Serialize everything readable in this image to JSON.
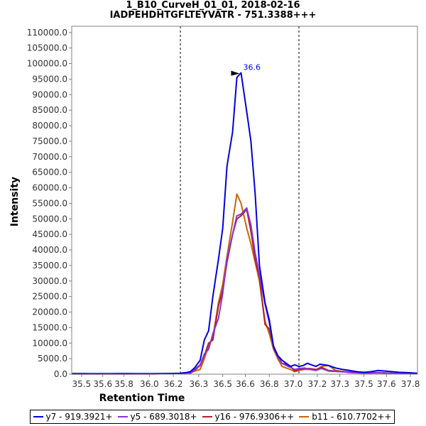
{
  "chart_data": {
    "type": "line",
    "title": "1_B10_CurveH_01_01, 2018-02-16",
    "subtitle": "IADPEHDHTGFLTEYVATR - 751.3388+++",
    "xlabel": "Retention Time",
    "ylabel": "Intensity",
    "xlim": [
      35.43,
      37.88
    ],
    "ylim": [
      0,
      112000
    ],
    "xticks": [
      "35.5",
      "35.6",
      "35.8",
      "36.0",
      "36.2",
      "36.3",
      "36.5",
      "36.6",
      "36.8",
      "37.0",
      "37.2",
      "37.3",
      "37.5",
      "37.6",
      "37.8"
    ],
    "xtick_values": [
      35.5,
      35.65,
      35.8,
      35.98,
      36.15,
      36.33,
      36.5,
      36.66,
      36.83,
      37.0,
      37.17,
      37.33,
      37.5,
      37.66,
      37.83
    ],
    "yticks": [
      "0.0",
      "5000.0",
      "10000.0",
      "15000.0",
      "20000.0",
      "25000.0",
      "30000.0",
      "35000.0",
      "40000.0",
      "45000.0",
      "50000.0",
      "55000.0",
      "60000.0",
      "65000.0",
      "70000.0",
      "75000.0",
      "80000.0",
      "85000.0",
      "90000.0",
      "95000.0",
      "100000.0",
      "105000.0",
      "110000.0"
    ],
    "ytick_values": [
      0,
      5000,
      10000,
      15000,
      20000,
      25000,
      30000,
      35000,
      40000,
      45000,
      50000,
      55000,
      60000,
      65000,
      70000,
      75000,
      80000,
      85000,
      90000,
      95000,
      100000,
      105000,
      110000
    ],
    "vlines": [
      36.2,
      37.04
    ],
    "peak_annotation": {
      "x": 36.66,
      "y": 97000,
      "label": "36.6"
    },
    "series": [
      {
        "name": "y7 - 919.3921+",
        "color": "#0000dd",
        "x": [
          35.43,
          35.5,
          35.6,
          35.7,
          35.8,
          35.9,
          36.0,
          36.1,
          36.2,
          36.24,
          36.27,
          36.3,
          36.34,
          36.37,
          36.4,
          36.43,
          36.47,
          36.5,
          36.53,
          36.57,
          36.6,
          36.63,
          36.67,
          36.7,
          36.73,
          36.76,
          36.8,
          36.83,
          36.86,
          36.89,
          36.92,
          36.95,
          36.98,
          37.01,
          37.04,
          37.07,
          37.1,
          37.13,
          37.16,
          37.19,
          37.22,
          37.25,
          37.3,
          37.35,
          37.4,
          37.45,
          37.5,
          37.55,
          37.6,
          37.65,
          37.7,
          37.75,
          37.8,
          37.88
        ],
        "y": [
          200,
          200,
          150,
          150,
          200,
          150,
          150,
          200,
          300,
          500,
          800,
          2000,
          4500,
          11000,
          14000,
          25000,
          37000,
          47000,
          67000,
          78000,
          95500,
          97000,
          84500,
          75000,
          58000,
          35000,
          23000,
          17500,
          9000,
          6000,
          4500,
          3500,
          2500,
          3000,
          2500,
          2800,
          3500,
          3000,
          2500,
          3200,
          3000,
          2800,
          2000,
          1500,
          1200,
          800,
          600,
          800,
          1200,
          1000,
          800,
          600,
          500,
          300
        ]
      },
      {
        "name": "y5 - 689.3018+",
        "color": "#8833dd",
        "x": [
          35.43,
          35.6,
          35.8,
          36.0,
          36.2,
          36.27,
          36.3,
          36.34,
          36.37,
          36.4,
          36.43,
          36.47,
          36.5,
          36.53,
          36.57,
          36.6,
          36.63,
          36.67,
          36.7,
          36.73,
          36.76,
          36.8,
          36.83,
          36.86,
          36.89,
          36.92,
          36.95,
          36.98,
          37.01,
          37.04,
          37.08,
          37.12,
          37.16,
          37.2,
          37.25,
          37.3,
          37.4,
          37.5,
          37.6,
          37.7,
          37.88
        ],
        "y": [
          100,
          100,
          100,
          100,
          150,
          400,
          1500,
          3000,
          6500,
          8000,
          13000,
          18000,
          26000,
          37000,
          45000,
          51000,
          51500,
          53500,
          48000,
          39000,
          32000,
          22500,
          16500,
          8500,
          5500,
          3500,
          2800,
          2200,
          1500,
          1800,
          2000,
          1500,
          1200,
          1800,
          1000,
          900,
          600,
          400,
          500,
          300,
          200
        ]
      },
      {
        "name": "y16 - 976.9306++",
        "color": "#b22222",
        "x": [
          35.43,
          35.6,
          35.8,
          36.0,
          36.2,
          36.27,
          36.3,
          36.34,
          36.37,
          36.4,
          36.43,
          36.47,
          36.5,
          36.53,
          36.57,
          36.6,
          36.63,
          36.67,
          36.7,
          36.73,
          36.76,
          36.8,
          36.83,
          36.86,
          36.89,
          36.92,
          36.95,
          36.98,
          37.01,
          37.04,
          37.08,
          37.12,
          37.16,
          37.2,
          37.25,
          37.3,
          37.4,
          37.5,
          37.6,
          37.7,
          37.88
        ],
        "y": [
          100,
          100,
          100,
          100,
          150,
          400,
          1200,
          2800,
          6000,
          10000,
          11000,
          22000,
          27000,
          36000,
          45000,
          50000,
          51000,
          53000,
          46000,
          37000,
          31000,
          16000,
          14500,
          9000,
          6000,
          3500,
          3200,
          2500,
          1000,
          1500,
          1800,
          1800,
          1500,
          2200,
          1200,
          1000,
          700,
          400,
          500,
          300,
          200
        ]
      },
      {
        "name": "b11 - 610.7702++",
        "color": "#cc6600",
        "x": [
          35.43,
          35.6,
          35.8,
          36.0,
          36.2,
          36.27,
          36.3,
          36.34,
          36.37,
          36.4,
          36.43,
          36.47,
          36.5,
          36.53,
          36.57,
          36.6,
          36.63,
          36.67,
          36.7,
          36.73,
          36.76,
          36.8,
          36.83,
          36.86,
          36.89,
          36.92,
          36.95,
          36.98,
          37.01,
          37.04,
          37.08,
          37.12,
          37.16,
          37.2,
          37.25,
          37.3,
          37.4,
          37.5,
          37.6,
          37.7,
          37.88
        ],
        "y": [
          100,
          100,
          100,
          100,
          150,
          300,
          1000,
          1500,
          5000,
          9000,
          12000,
          23000,
          29000,
          38000,
          49000,
          58000,
          55000,
          47000,
          42000,
          36000,
          30000,
          17000,
          13000,
          8000,
          5000,
          2500,
          2000,
          1500,
          800,
          1200,
          1500,
          1500,
          1200,
          2500,
          2800,
          1200,
          500,
          300,
          400,
          300,
          200
        ]
      }
    ]
  }
}
